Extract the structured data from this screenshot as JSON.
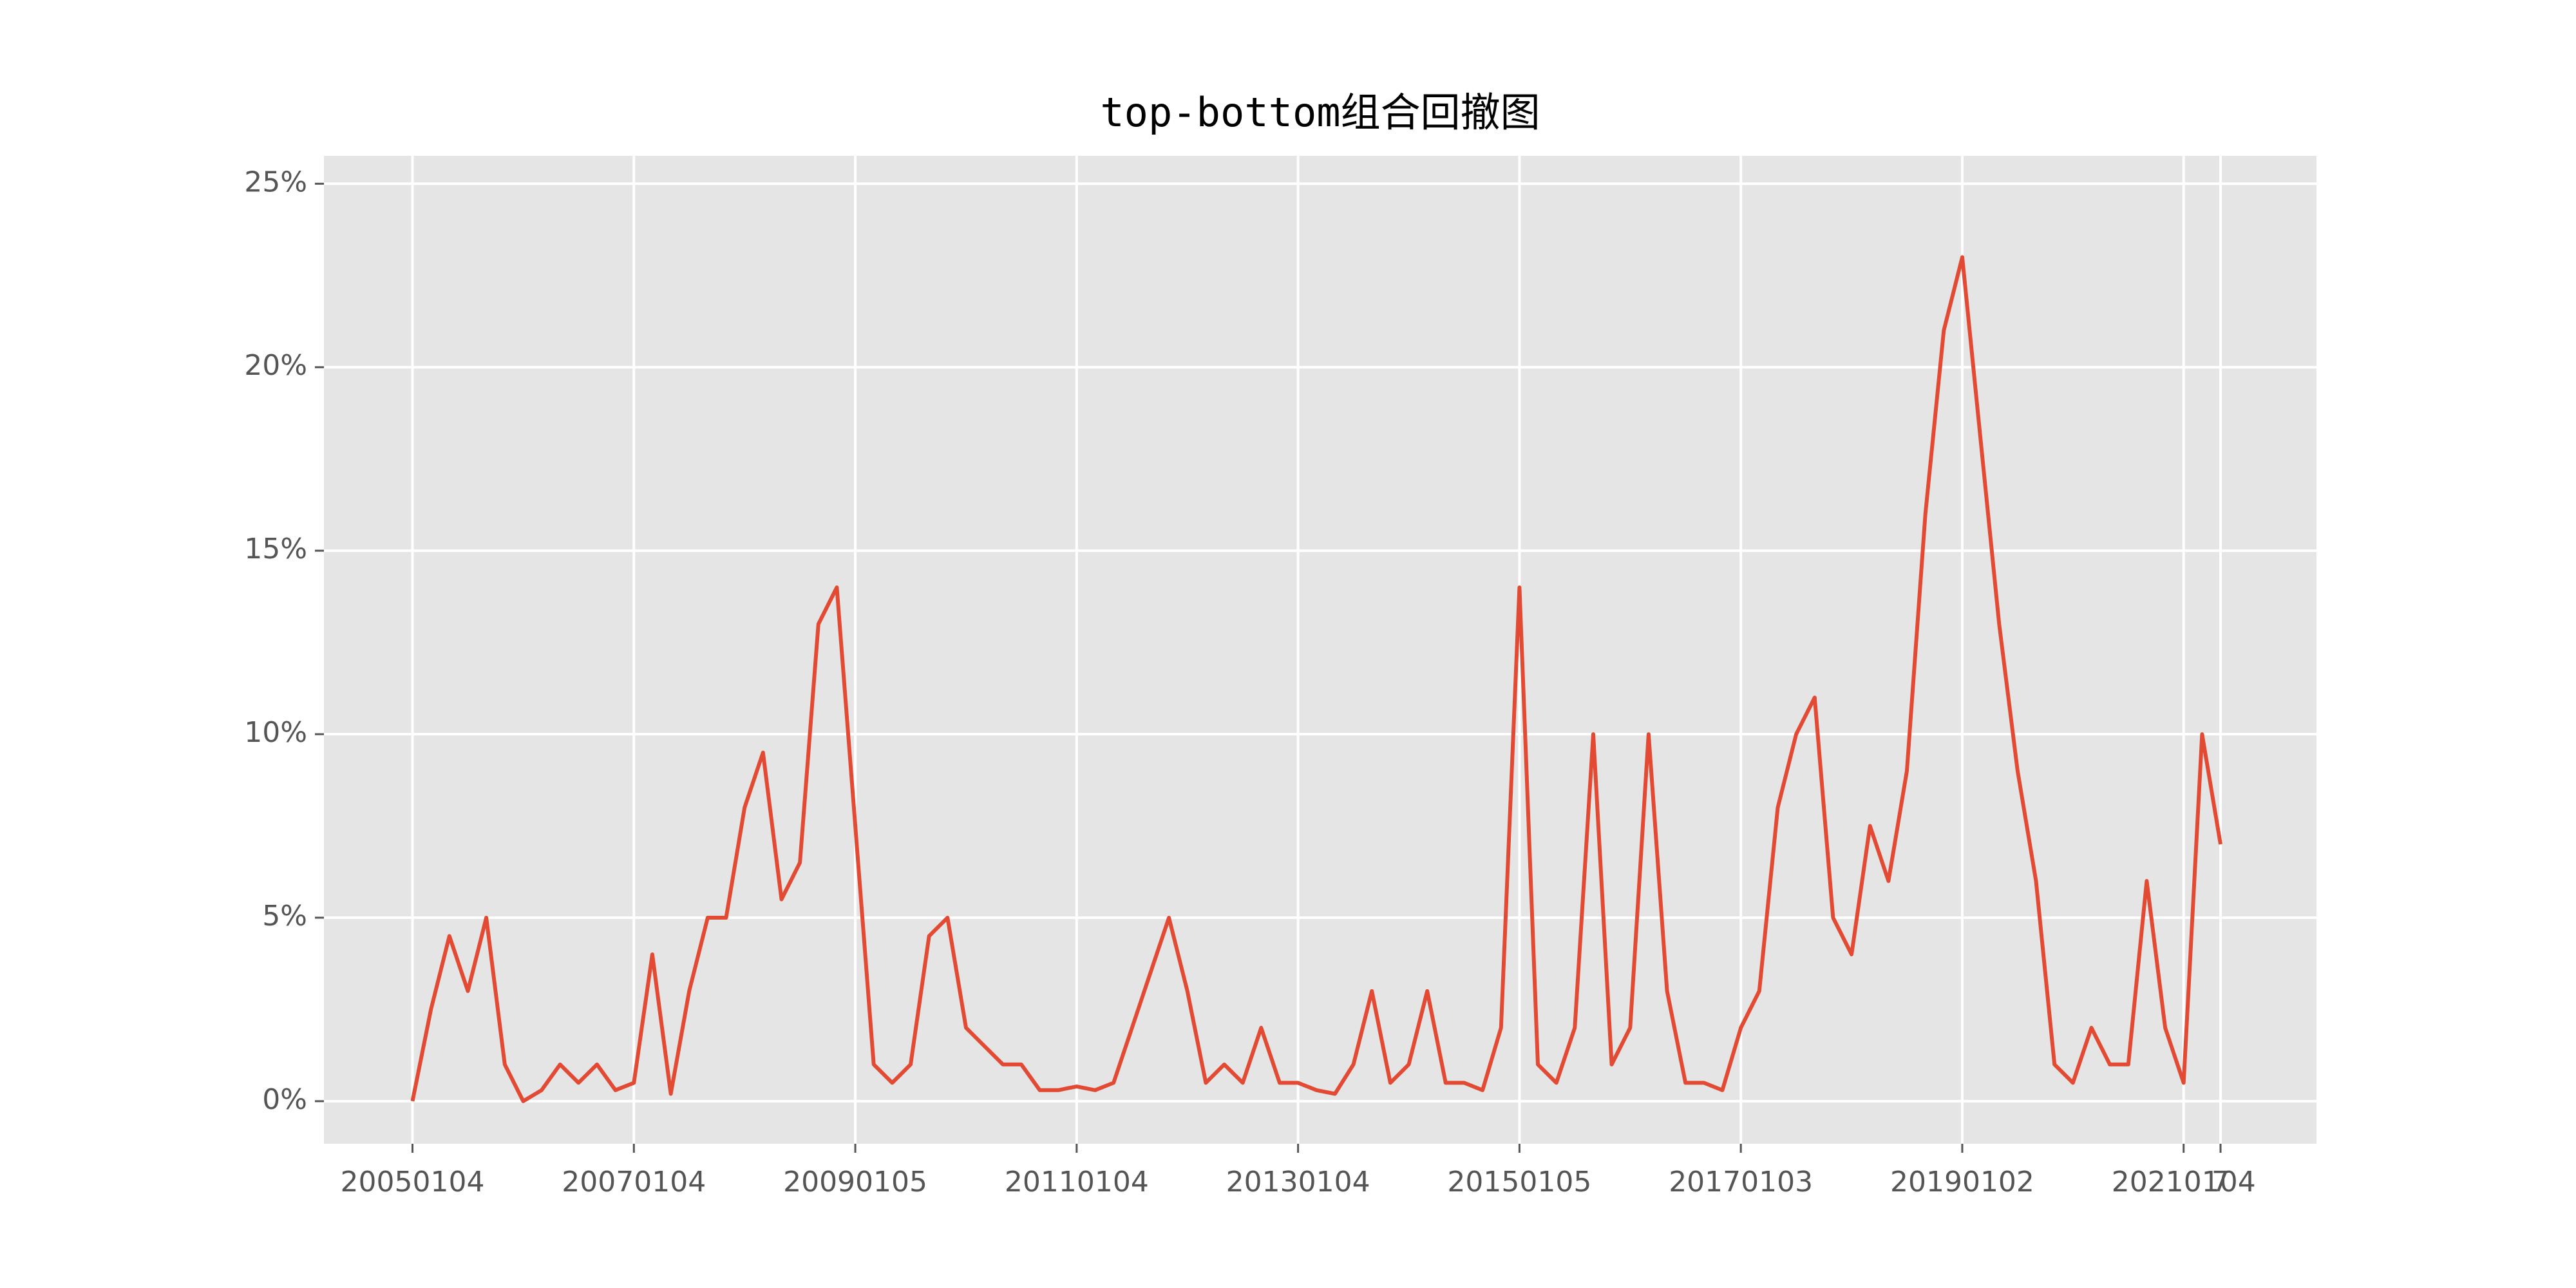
{
  "chart_data": {
    "type": "line",
    "title": "top-bottom组合回撤图",
    "categories": [
      "20050104",
      null,
      null,
      null,
      null,
      null,
      null,
      null,
      null,
      null,
      null,
      null,
      "20070104",
      null,
      null,
      null,
      null,
      null,
      null,
      null,
      null,
      null,
      null,
      null,
      "20090105",
      null,
      null,
      null,
      null,
      null,
      null,
      null,
      null,
      null,
      null,
      null,
      "20110104",
      null,
      null,
      null,
      null,
      null,
      null,
      null,
      null,
      null,
      null,
      null,
      "20130104",
      null,
      null,
      null,
      null,
      null,
      null,
      null,
      null,
      null,
      null,
      null,
      "20150105",
      null,
      null,
      null,
      null,
      null,
      null,
      null,
      null,
      null,
      null,
      null,
      "20170103",
      null,
      null,
      null,
      null,
      null,
      null,
      null,
      null,
      null,
      null,
      null,
      "20190102",
      null,
      null,
      null,
      null,
      null,
      null,
      null,
      null,
      null,
      null,
      null,
      "20210104",
      null,
      7
    ],
    "series": [
      {
        "color": "#e24a33",
        "values": [
          0,
          2.5,
          4.5,
          3,
          5,
          1,
          0,
          0.3,
          1,
          0.5,
          1,
          0.3,
          0.5,
          4,
          0.2,
          3,
          5,
          5,
          8,
          9.5,
          5.5,
          6.5,
          13,
          14,
          7.5,
          1,
          0.5,
          1,
          4.5,
          5,
          2,
          1.5,
          1,
          1,
          0.3,
          0.3,
          0.4,
          0.3,
          0.5,
          2,
          3.5,
          5,
          3,
          0.5,
          1,
          0.5,
          2,
          0.5,
          0.5,
          0.3,
          0.2,
          1,
          3,
          0.5,
          1,
          3,
          0.5,
          0.5,
          0.3,
          2,
          14,
          1,
          0.5,
          2,
          10,
          1,
          2,
          10,
          3,
          0.5,
          0.5,
          0.3,
          2,
          3,
          8,
          10,
          11,
          5,
          4,
          7.5,
          6,
          9,
          16,
          21,
          23,
          18,
          13,
          9,
          6,
          1,
          0.5,
          2,
          1,
          1,
          6,
          2,
          0.5,
          10,
          7
        ]
      }
    ],
    "xlim": [
      -4.8,
      103.2
    ],
    "ylim": [
      -1.16,
      25.76
    ],
    "yticks": [
      {
        "value": 0,
        "label": "0%"
      },
      {
        "value": 5,
        "label": "5%"
      },
      {
        "value": 10,
        "label": "10%"
      },
      {
        "value": 15,
        "label": "15%"
      },
      {
        "value": 20,
        "label": "20%"
      },
      {
        "value": 25,
        "label": "25%"
      }
    ],
    "grid": true
  }
}
